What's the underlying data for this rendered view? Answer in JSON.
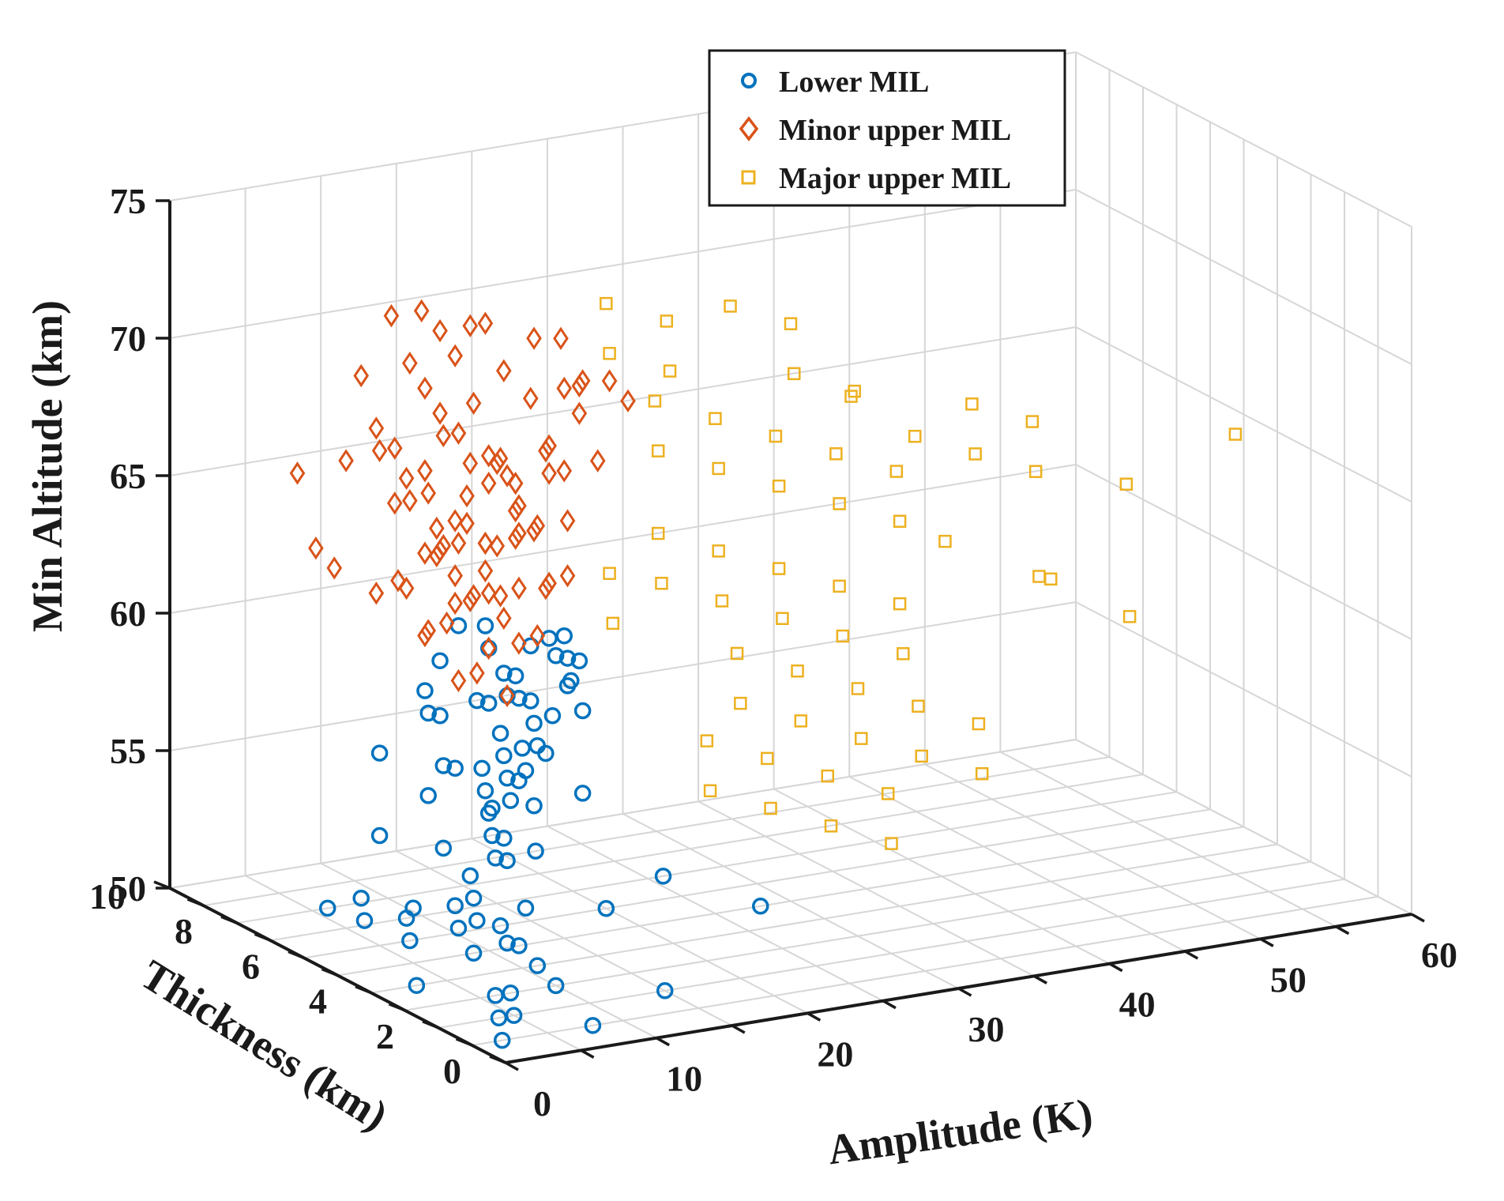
{
  "chart_data": {
    "type": "scatter3d",
    "title": "",
    "xlabel": "Amplitude (K)",
    "ylabel": "Thickness (km)",
    "zlabel": "Min Altitude (km)",
    "xlim": [
      0,
      60
    ],
    "ylim": [
      0,
      10
    ],
    "zlim": [
      50,
      75
    ],
    "x_ticks": [
      "0",
      "10",
      "20",
      "30",
      "40",
      "50",
      "60"
    ],
    "y_ticks": [
      "0",
      "2",
      "4",
      "6",
      "8",
      "10"
    ],
    "z_ticks": [
      "50",
      "55",
      "60",
      "65",
      "70",
      "75"
    ],
    "grid": true,
    "legend_position": "top-right",
    "series": [
      {
        "name": "Lower MIL",
        "marker": "circle",
        "color": "#0072BD",
        "points": [
          [
            2,
            1,
            50
          ],
          [
            4,
            2,
            50
          ],
          [
            6,
            3,
            50
          ],
          [
            3,
            4,
            50
          ],
          [
            9,
            5,
            50
          ],
          [
            5,
            2,
            50
          ],
          [
            7,
            3,
            50
          ],
          [
            11,
            4,
            50
          ],
          [
            13,
            6,
            50
          ],
          [
            8,
            1,
            50
          ],
          [
            10,
            3,
            50
          ],
          [
            12,
            5,
            50
          ],
          [
            15,
            2,
            50
          ],
          [
            20,
            6,
            50
          ],
          [
            22,
            9,
            50
          ],
          [
            26,
            7,
            50
          ],
          [
            28,
            5,
            50
          ],
          [
            7,
            6,
            50
          ],
          [
            9,
            7,
            50
          ],
          [
            6,
            8,
            50
          ],
          [
            4,
            6,
            51
          ],
          [
            6,
            7,
            51
          ],
          [
            8,
            5,
            51
          ],
          [
            10,
            6,
            51
          ],
          [
            9,
            4,
            51
          ],
          [
            5,
            5,
            52
          ],
          [
            7,
            4,
            52
          ],
          [
            9,
            5,
            52
          ],
          [
            11,
            6,
            52
          ],
          [
            8,
            3,
            53
          ],
          [
            5,
            6,
            54
          ],
          [
            7,
            5,
            54
          ],
          [
            9,
            4,
            54
          ],
          [
            11,
            5,
            54
          ],
          [
            6,
            3,
            55
          ],
          [
            8,
            4,
            55
          ],
          [
            10,
            5,
            55
          ],
          [
            12,
            6,
            55
          ],
          [
            14,
            7,
            55
          ],
          [
            13,
            5,
            55
          ],
          [
            6,
            5,
            56
          ],
          [
            8,
            4,
            56
          ],
          [
            10,
            6,
            56
          ],
          [
            12,
            5,
            56
          ],
          [
            14,
            4,
            56
          ],
          [
            16,
            6,
            56
          ],
          [
            7,
            3,
            57
          ],
          [
            9,
            4,
            57
          ],
          [
            11,
            5,
            57
          ],
          [
            13,
            6,
            57
          ],
          [
            5,
            6,
            57
          ],
          [
            7,
            5,
            57
          ],
          [
            9,
            6,
            58
          ],
          [
            11,
            4,
            58
          ],
          [
            13,
            5,
            58
          ],
          [
            15,
            6,
            58
          ],
          [
            8,
            3,
            58
          ],
          [
            10,
            4,
            58
          ],
          [
            12,
            5,
            59
          ],
          [
            14,
            4,
            59
          ],
          [
            6,
            5,
            59
          ],
          [
            8,
            6,
            59
          ],
          [
            10,
            5,
            59
          ],
          [
            12,
            4,
            59
          ],
          [
            14,
            6,
            59
          ],
          [
            16,
            5,
            60
          ],
          [
            9,
            4,
            60
          ],
          [
            11,
            5,
            60
          ],
          [
            13,
            4,
            60
          ],
          [
            15,
            6,
            60
          ],
          [
            7,
            4,
            60
          ],
          [
            9,
            6,
            60
          ],
          [
            11,
            3,
            61
          ],
          [
            13,
            4,
            61
          ],
          [
            15,
            5,
            61
          ],
          [
            10,
            5,
            61
          ],
          [
            12,
            6,
            61
          ],
          [
            14,
            5,
            61
          ],
          [
            8,
            5,
            62
          ],
          [
            10,
            3,
            62
          ]
        ]
      },
      {
        "name": "Minor upper MIL",
        "marker": "diamond",
        "color": "#D95319",
        "points": [
          [
            2,
            6,
            64
          ],
          [
            3,
            7,
            64
          ],
          [
            4,
            8,
            66
          ],
          [
            5,
            7,
            67
          ],
          [
            6,
            6,
            68
          ],
          [
            7,
            5,
            69
          ],
          [
            8,
            6,
            70
          ],
          [
            9,
            5,
            70
          ],
          [
            10,
            6,
            71
          ],
          [
            11,
            5,
            71
          ],
          [
            12,
            6,
            72
          ],
          [
            13,
            5,
            72
          ],
          [
            14,
            4,
            71
          ],
          [
            15,
            5,
            70
          ],
          [
            6,
            7,
            70
          ],
          [
            7,
            6,
            71
          ],
          [
            8,
            7,
            72
          ],
          [
            9,
            6,
            72
          ],
          [
            10,
            7,
            72
          ],
          [
            11,
            6,
            72
          ],
          [
            5,
            6,
            68
          ],
          [
            6,
            5,
            67
          ],
          [
            7,
            6,
            66
          ],
          [
            8,
            5,
            65
          ],
          [
            9,
            6,
            64
          ],
          [
            10,
            5,
            63
          ],
          [
            11,
            6,
            62
          ],
          [
            12,
            5,
            61
          ],
          [
            13,
            6,
            62
          ],
          [
            14,
            5,
            63
          ],
          [
            4,
            5,
            64
          ],
          [
            5,
            4,
            63
          ],
          [
            6,
            5,
            62
          ],
          [
            7,
            4,
            61
          ],
          [
            8,
            5,
            60
          ],
          [
            9,
            4,
            60
          ],
          [
            10,
            5,
            61
          ],
          [
            11,
            4,
            62
          ],
          [
            12,
            5,
            63
          ],
          [
            13,
            4,
            64
          ],
          [
            7,
            7,
            68
          ],
          [
            8,
            6,
            67
          ],
          [
            9,
            7,
            66
          ],
          [
            10,
            6,
            65
          ],
          [
            11,
            7,
            64
          ],
          [
            12,
            6,
            63
          ],
          [
            13,
            7,
            64
          ],
          [
            14,
            6,
            65
          ],
          [
            15,
            7,
            66
          ],
          [
            16,
            6,
            67
          ],
          [
            8,
            5,
            69
          ],
          [
            9,
            4,
            68
          ],
          [
            10,
            5,
            67
          ],
          [
            11,
            4,
            66
          ],
          [
            12,
            5,
            65
          ],
          [
            13,
            4,
            66
          ],
          [
            14,
            5,
            67
          ],
          [
            15,
            4,
            68
          ],
          [
            16,
            5,
            69
          ],
          [
            17,
            4,
            70
          ],
          [
            6,
            6,
            66
          ],
          [
            7,
            5,
            65
          ],
          [
            8,
            6,
            64
          ],
          [
            9,
            5,
            63
          ],
          [
            10,
            6,
            62
          ],
          [
            11,
            5,
            62
          ],
          [
            12,
            6,
            64
          ],
          [
            13,
            5,
            65
          ],
          [
            14,
            6,
            66
          ],
          [
            15,
            5,
            67
          ],
          [
            9,
            6,
            69
          ],
          [
            10,
            5,
            68
          ],
          [
            11,
            6,
            67
          ],
          [
            12,
            5,
            66
          ],
          [
            13,
            6,
            67
          ],
          [
            14,
            5,
            68
          ],
          [
            15,
            6,
            69
          ],
          [
            16,
            5,
            70
          ],
          [
            17,
            6,
            71
          ],
          [
            18,
            5,
            70
          ],
          [
            7,
            7,
            62
          ],
          [
            8,
            6,
            61
          ],
          [
            9,
            7,
            62
          ],
          [
            10,
            6,
            63
          ],
          [
            11,
            7,
            63
          ],
          [
            12,
            6,
            64
          ],
          [
            13,
            7,
            65
          ],
          [
            14,
            6,
            64
          ],
          [
            15,
            7,
            63
          ],
          [
            16,
            6,
            62
          ]
        ]
      },
      {
        "name": "Major upper MIL",
        "marker": "square",
        "color": "#EDB120",
        "points": [
          [
            18,
            5,
            71
          ],
          [
            20,
            6,
            72
          ],
          [
            22,
            5,
            70
          ],
          [
            24,
            6,
            71
          ],
          [
            26,
            5,
            72
          ],
          [
            28,
            4,
            70
          ],
          [
            30,
            5,
            71
          ],
          [
            32,
            4,
            69
          ],
          [
            34,
            5,
            68
          ],
          [
            36,
            4,
            67
          ],
          [
            19,
            4,
            68
          ],
          [
            21,
            5,
            69
          ],
          [
            23,
            4,
            67
          ],
          [
            25,
            5,
            68
          ],
          [
            27,
            4,
            66
          ],
          [
            29,
            5,
            67
          ],
          [
            31,
            4,
            65
          ],
          [
            33,
            5,
            66
          ],
          [
            35,
            4,
            64
          ],
          [
            37,
            5,
            65
          ],
          [
            17,
            3,
            64
          ],
          [
            19,
            4,
            65
          ],
          [
            21,
            3,
            63
          ],
          [
            23,
            4,
            64
          ],
          [
            25,
            3,
            62
          ],
          [
            27,
            4,
            63
          ],
          [
            29,
            3,
            61
          ],
          [
            31,
            4,
            62
          ],
          [
            33,
            3,
            60
          ],
          [
            35,
            4,
            61
          ],
          [
            20,
            2,
            60
          ],
          [
            22,
            3,
            61
          ],
          [
            24,
            2,
            59
          ],
          [
            26,
            3,
            60
          ],
          [
            28,
            2,
            58
          ],
          [
            30,
            3,
            59
          ],
          [
            32,
            2,
            57
          ],
          [
            34,
            3,
            58
          ],
          [
            36,
            2,
            56
          ],
          [
            38,
            3,
            57
          ],
          [
            18,
            2,
            57
          ],
          [
            20,
            3,
            58
          ],
          [
            22,
            2,
            56
          ],
          [
            24,
            3,
            57
          ],
          [
            26,
            2,
            55
          ],
          [
            28,
            3,
            56
          ],
          [
            30,
            2,
            54
          ],
          [
            32,
            3,
            55
          ],
          [
            16,
            4,
            62
          ],
          [
            18,
            5,
            63
          ],
          [
            40,
            4,
            66
          ],
          [
            42,
            5,
            67
          ],
          [
            44,
            4,
            65
          ],
          [
            46,
            5,
            66
          ],
          [
            50,
            4,
            64
          ],
          [
            55,
            3,
            66
          ],
          [
            42,
            3,
            62
          ],
          [
            45,
            4,
            61
          ],
          [
            48,
            3,
            60
          ],
          [
            38,
            4,
            63
          ]
        ]
      }
    ]
  },
  "legend": {
    "items": [
      {
        "label": "Lower MIL",
        "marker": "circle",
        "color": "#0072BD"
      },
      {
        "label": "Minor upper MIL",
        "marker": "diamond",
        "color": "#D95319"
      },
      {
        "label": "Major upper MIL",
        "marker": "square",
        "color": "#EDB120"
      }
    ]
  }
}
